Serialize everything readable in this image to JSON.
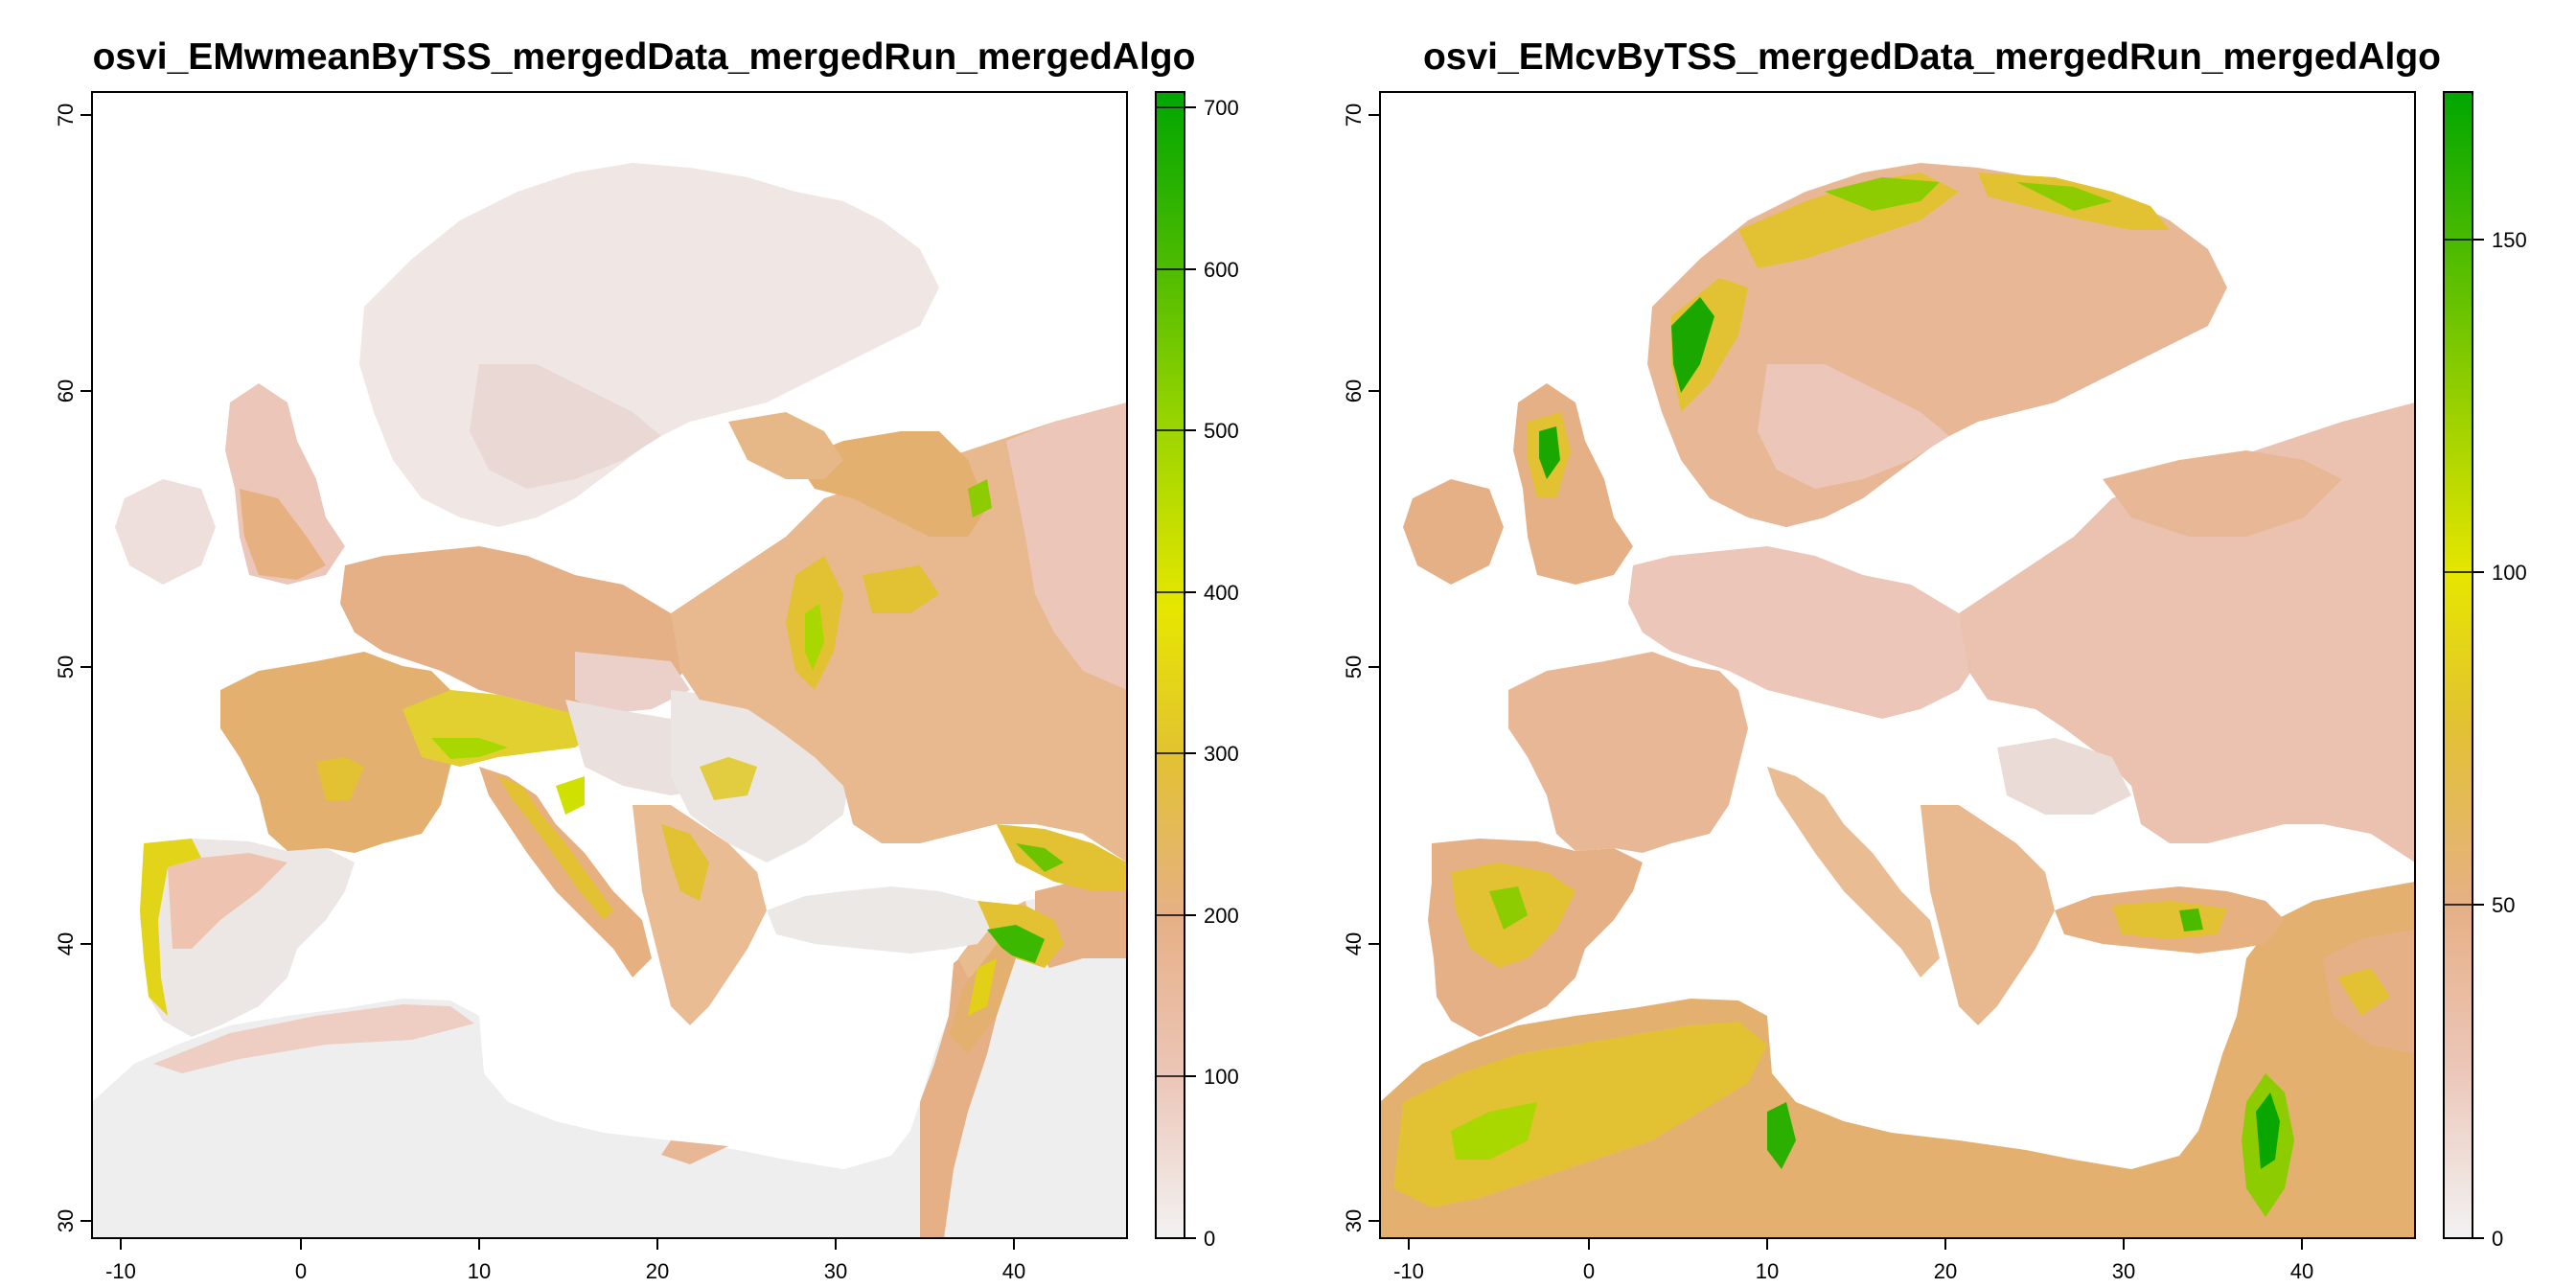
{
  "panels": [
    {
      "title": "osvi_EMwmeanByTSS_mergedData_mergedRun_mergedAlgo",
      "x_ticks": [
        "-10",
        "0",
        "10",
        "20",
        "30",
        "40"
      ],
      "y_ticks": [
        "30",
        "40",
        "50",
        "60",
        "70"
      ],
      "legend_ticks": [
        "0",
        "100",
        "200",
        "300",
        "400",
        "500",
        "600",
        "700"
      ],
      "legend_range": [
        0,
        710
      ]
    },
    {
      "title": "osvi_EMcvByTSS_mergedData_mergedRun_mergedAlgo",
      "x_ticks": [
        "-10",
        "0",
        "10",
        "20",
        "30",
        "40"
      ],
      "y_ticks": [
        "30",
        "40",
        "50",
        "60",
        "70"
      ],
      "legend_ticks": [
        "0",
        "50",
        "100",
        "150"
      ],
      "legend_range": [
        0,
        172
      ]
    }
  ],
  "map_extent": {
    "lon": [
      -11,
      47
    ],
    "lat": [
      29,
      71
    ]
  },
  "colors": {
    "low": "#f2f2f2",
    "pink": "#eab8a4",
    "tan": "#e4b070",
    "gold": "#e2c232",
    "yellow": "#e6e600",
    "green": "#00a600"
  }
}
